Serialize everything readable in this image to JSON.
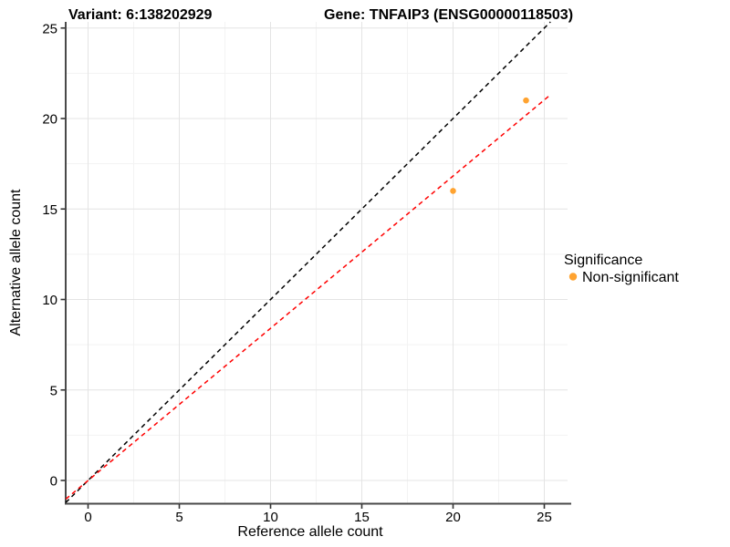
{
  "titles": {
    "left": "Variant: 6:138202929",
    "right": "Gene: TNFAIP3 (ENSG00000118503)"
  },
  "chart_data": {
    "type": "scatter",
    "title": "Variant: 6:138202929   Gene: TNFAIP3 (ENSG00000118503)",
    "xlabel": "Reference allele count",
    "ylabel": "Alternative allele count",
    "xlim": [
      -1.25,
      26.25
    ],
    "ylim": [
      -1.26,
      25.35
    ],
    "x_tick_values": [
      0,
      5,
      10,
      15,
      20,
      25
    ],
    "y_tick_values": [
      0,
      5,
      10,
      15,
      20,
      25
    ],
    "x_minor_gridlines": [
      2.5,
      7.5,
      12.5,
      17.5,
      22.5
    ],
    "y_minor_gridlines": [
      2.5,
      7.5,
      12.5,
      17.5,
      22.5
    ],
    "grid": true,
    "legend_position": "right",
    "series": [
      {
        "name": "Non-significant",
        "color": "#FFA330",
        "marker": "circle",
        "points": [
          {
            "x": 20,
            "y": 16
          },
          {
            "x": 24,
            "y": 21
          }
        ]
      }
    ],
    "ref_lines": [
      {
        "name": "identity-line",
        "color": "#000000",
        "dash": "dashed",
        "x1": -1.22,
        "y1": -1.22,
        "x2": 25.34,
        "y2": 25.34
      },
      {
        "name": "allelic-ratio-line",
        "color": "#FF0000",
        "dash": "dashed",
        "x1": -1.22,
        "y1": -1.03,
        "x2": 25.3,
        "y2": 21.28
      }
    ]
  },
  "legend": {
    "title": "Significance",
    "items": [
      {
        "label": "Non-significant",
        "color": "#FFA330"
      }
    ]
  },
  "style_colors": {
    "major_grid": "#e4e4e4",
    "minor_grid": "#f3f3f3",
    "axis_line": "#4a4a4a",
    "tick_mark": "#333333"
  }
}
